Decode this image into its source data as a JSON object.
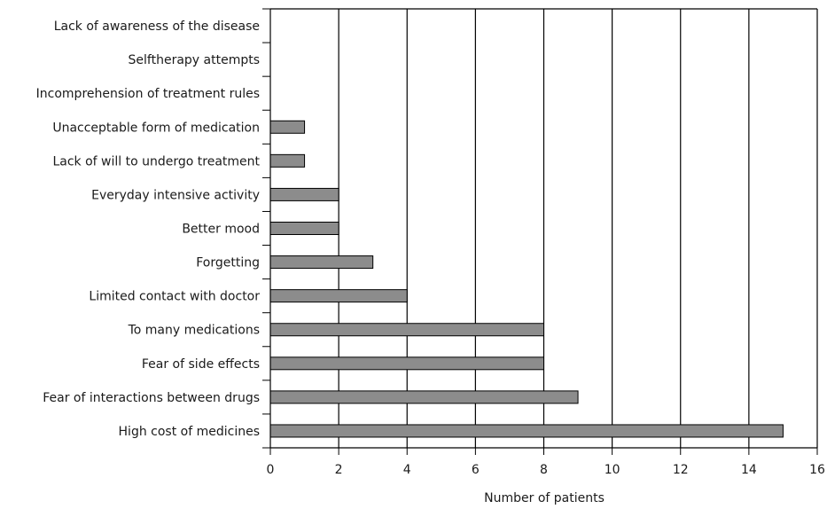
{
  "chart_data": {
    "type": "bar",
    "orientation": "horizontal",
    "title": "",
    "xlabel": "Number of patients",
    "ylabel": "",
    "xlim": [
      0,
      16
    ],
    "xticks": [
      0,
      2,
      4,
      6,
      8,
      10,
      12,
      14,
      16
    ],
    "grid": "vertical",
    "legend": "none",
    "bar_color": "#8c8c8c",
    "categories": [
      "Lack of awareness of the disease",
      "Selftherapy attempts",
      "Incomprehension of treatment rules",
      "Unacceptable form of medication",
      "Lack of will to undergo treatment",
      "Everyday intensive activity",
      "Better mood",
      "Forgetting",
      "Limited contact with doctor",
      "To many medications",
      "Fear of side effects",
      "Fear of interactions between drugs",
      "High cost of medicines"
    ],
    "values": [
      0,
      0,
      0,
      1,
      1,
      2,
      2,
      3,
      4,
      8,
      8,
      9,
      15
    ]
  }
}
